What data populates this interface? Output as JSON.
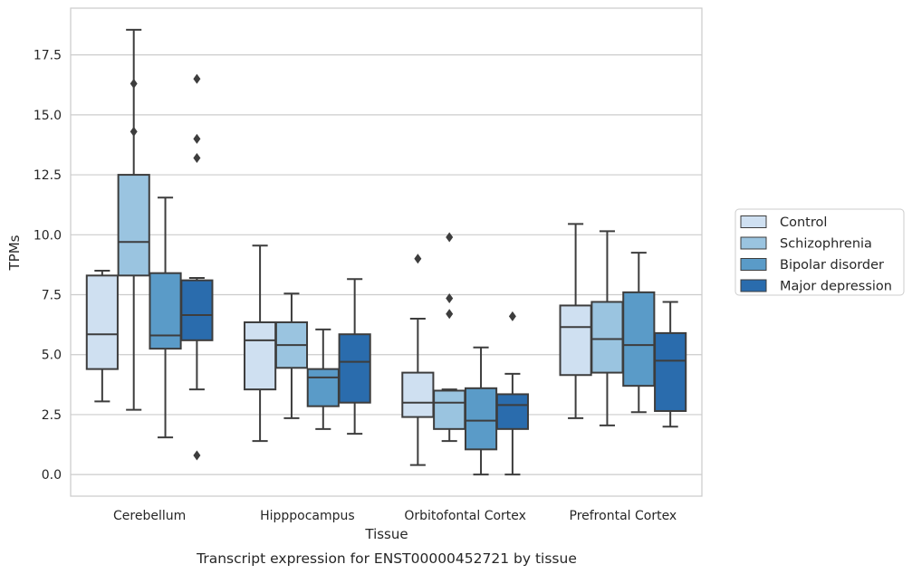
{
  "chart_data": {
    "type": "box",
    "title": "",
    "caption": "Transcript expression for ENST00000452721 by tissue",
    "xlabel": "Tissue",
    "ylabel": "TPMs",
    "ylim": [
      -0.9,
      19.45
    ],
    "yticks": [
      "0.0",
      "2.5",
      "5.0",
      "7.5",
      "10.0",
      "12.5",
      "15.0",
      "17.5"
    ],
    "ytick_values": [
      0,
      2.5,
      5.0,
      7.5,
      10.0,
      12.5,
      15.0,
      17.5
    ],
    "grid": true,
    "legend_position": "right",
    "categories": [
      "Cerebellum",
      "Hipppocampus",
      "Orbitofontal Cortex",
      "Prefrontal Cortex"
    ],
    "series": [
      {
        "name": "Control",
        "color": "#cfe0f1",
        "boxes": [
          {
            "whislo": 3.05,
            "q1": 4.4,
            "med": 5.85,
            "q3": 8.3,
            "whishi": 8.5,
            "fliers": []
          },
          {
            "whislo": 1.4,
            "q1": 3.55,
            "med": 5.6,
            "q3": 6.35,
            "whishi": 9.55,
            "fliers": []
          },
          {
            "whislo": 0.4,
            "q1": 2.4,
            "med": 3.0,
            "q3": 4.25,
            "whishi": 6.5,
            "fliers": [
              9.0
            ]
          },
          {
            "whislo": 2.35,
            "q1": 4.15,
            "med": 6.15,
            "q3": 7.05,
            "whishi": 10.45,
            "fliers": []
          }
        ]
      },
      {
        "name": "Schizophrenia",
        "color": "#9ac4e0",
        "boxes": [
          {
            "whislo": 2.7,
            "q1": 8.3,
            "med": 9.7,
            "q3": 12.5,
            "whishi": 18.55,
            "fliers": [
              16.3,
              14.3
            ]
          },
          {
            "whislo": 2.35,
            "q1": 4.45,
            "med": 5.4,
            "q3": 6.35,
            "whishi": 7.55,
            "fliers": []
          },
          {
            "whislo": 1.4,
            "q1": 1.9,
            "med": 3.0,
            "q3": 3.5,
            "whishi": 3.55,
            "fliers": [
              9.9,
              7.35,
              6.7
            ]
          },
          {
            "whislo": 2.05,
            "q1": 4.25,
            "med": 5.65,
            "q3": 7.2,
            "whishi": 10.15,
            "fliers": []
          }
        ]
      },
      {
        "name": "Bipolar disorder",
        "color": "#5a9bc8",
        "boxes": [
          {
            "whislo": 1.55,
            "q1": 5.25,
            "med": 5.8,
            "q3": 8.4,
            "whishi": 11.55,
            "fliers": []
          },
          {
            "whislo": 1.9,
            "q1": 2.85,
            "med": 4.05,
            "q3": 4.4,
            "whishi": 6.05,
            "fliers": []
          },
          {
            "whislo": 0.0,
            "q1": 1.05,
            "med": 2.25,
            "q3": 3.6,
            "whishi": 5.3,
            "fliers": []
          },
          {
            "whislo": 2.6,
            "q1": 3.7,
            "med": 5.4,
            "q3": 7.6,
            "whishi": 9.25,
            "fliers": []
          }
        ]
      },
      {
        "name": "Major depression",
        "color": "#2a6cad",
        "boxes": [
          {
            "whislo": 3.55,
            "q1": 5.6,
            "med": 6.65,
            "q3": 8.1,
            "whishi": 8.2,
            "fliers": [
              16.5,
              14.0,
              13.2,
              0.8
            ]
          },
          {
            "whislo": 1.7,
            "q1": 3.0,
            "med": 4.7,
            "q3": 5.85,
            "whishi": 8.15,
            "fliers": []
          },
          {
            "whislo": 0.0,
            "q1": 1.9,
            "med": 2.9,
            "q3": 3.35,
            "whishi": 4.2,
            "fliers": [
              6.6
            ]
          },
          {
            "whislo": 2.0,
            "q1": 2.65,
            "med": 4.75,
            "q3": 5.9,
            "whishi": 7.2,
            "fliers": []
          }
        ]
      }
    ]
  }
}
